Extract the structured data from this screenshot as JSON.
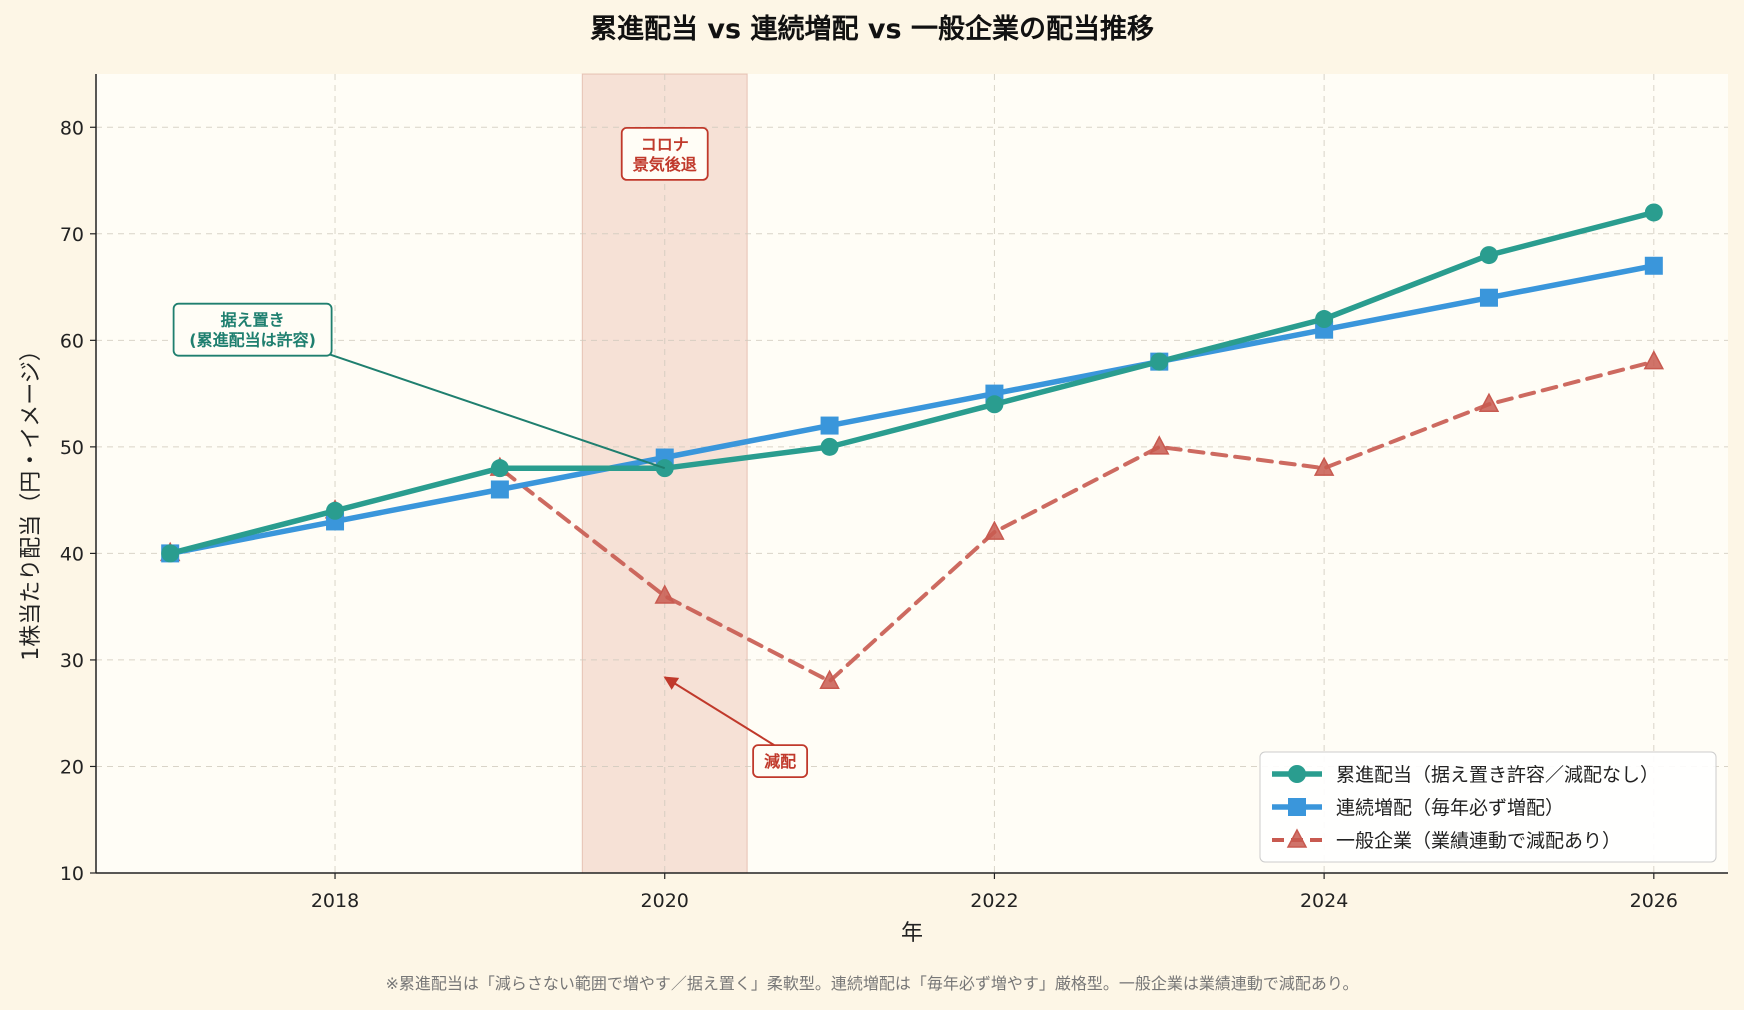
{
  "chart_data": {
    "type": "line",
    "title": "累進配当 vs 連続増配 vs 一般企業の配当推移",
    "xlabel": "年",
    "ylabel": "1株当たり配当（円・イメージ）",
    "x": [
      2017,
      2018,
      2019,
      2020,
      2021,
      2022,
      2023,
      2024,
      2025,
      2026
    ],
    "xlim": [
      2016.55,
      2026.45
    ],
    "ylim": [
      10,
      85
    ],
    "x_ticks": [
      2018,
      2020,
      2022,
      2024,
      2026
    ],
    "y_ticks": [
      10,
      20,
      30,
      40,
      50,
      60,
      70,
      80
    ],
    "grid": true,
    "legend_position": "lower-right",
    "series": [
      {
        "name": "累進配当（据え置き許容／減配なし）",
        "color": "#2a9d8f",
        "marker": "circle",
        "line": "solid",
        "values": [
          40,
          44,
          48,
          48,
          50,
          54,
          58,
          62,
          68,
          72
        ]
      },
      {
        "name": "連続増配（毎年必ず増配）",
        "color": "#3a96db",
        "marker": "square",
        "line": "solid",
        "values": [
          40,
          43,
          46,
          49,
          52,
          55,
          58,
          61,
          64,
          67
        ]
      },
      {
        "name": "一般企業（業績連動で減配あり）",
        "color": "#c85a50",
        "marker": "triangle",
        "line": "dashed",
        "values": [
          40,
          44,
          48,
          36,
          28,
          42,
          50,
          48,
          54,
          58
        ]
      }
    ],
    "shaded_region": {
      "x_from": 2019.5,
      "x_to": 2020.5,
      "color": "#e8b4a4"
    },
    "annotations": [
      {
        "id": "covid",
        "lines": [
          "コロナ",
          "景気後退"
        ],
        "color": "#c0392b",
        "x": 2020,
        "y": 77.5,
        "arrow": false
      },
      {
        "id": "hold",
        "lines": [
          "据え置き",
          "(累進配当は許容)"
        ],
        "color": "#1f7f6f",
        "x": 2017.5,
        "y": 61,
        "arrow_to": [
          2020,
          48
        ]
      },
      {
        "id": "cut",
        "lines": [
          "減配"
        ],
        "color": "#c0392b",
        "x": 2020.7,
        "y": 20.5,
        "arrow_to": [
          2020,
          28
        ]
      }
    ],
    "footnote": "※累進配当は「減らさない範囲で増やす／据え置く」柔軟型。連続増配は「毎年必ず増やす」厳格型。一般企業は業績連動で減配あり。"
  }
}
